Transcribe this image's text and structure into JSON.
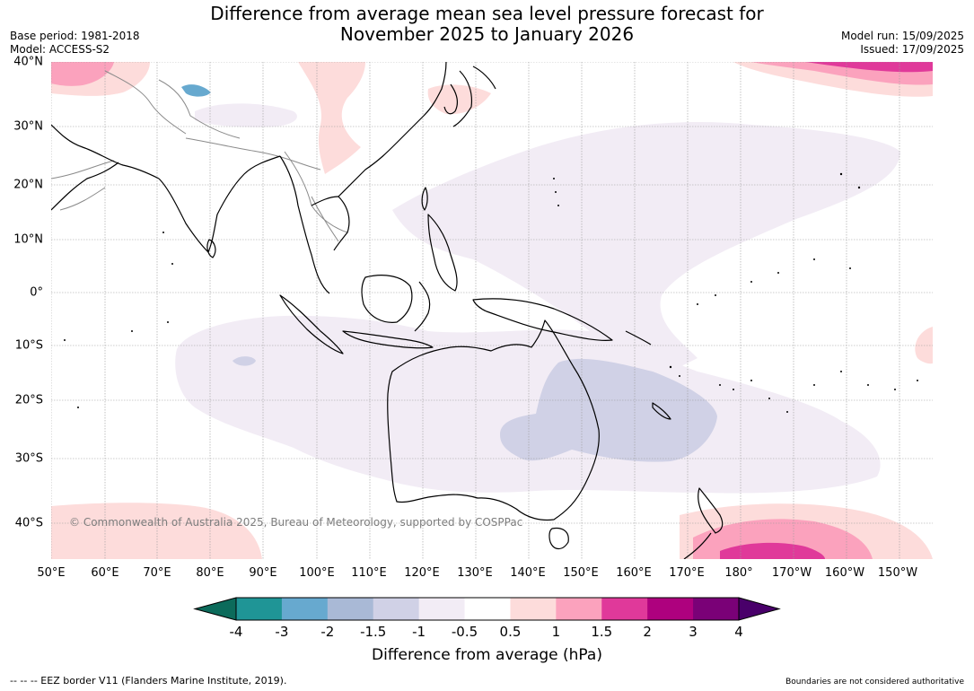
{
  "title": {
    "line1": "Difference from average mean sea level pressure forecast for",
    "line2": "November 2025 to January 2026"
  },
  "meta_left": {
    "base_period": "Base period: 1981-2018",
    "model": "Model: ACCESS-S2"
  },
  "meta_right": {
    "model_run": "Model run: 15/09/2025",
    "issued": "Issued: 17/09/2025"
  },
  "map": {
    "latitude_labels": [
      "40°N",
      "30°N",
      "20°N",
      "10°N",
      "0°",
      "10°S",
      "20°S",
      "30°S",
      "40°S"
    ],
    "longitude_labels": [
      "50°E",
      "60°E",
      "70°E",
      "80°E",
      "90°E",
      "100°E",
      "110°E",
      "120°E",
      "130°E",
      "140°E",
      "150°E",
      "160°E",
      "170°E",
      "180°",
      "170°W",
      "160°W",
      "150°W"
    ],
    "copyright": "© Commonwealth of Australia 2025, Bureau of Meteorology, supported by COSPPac",
    "colors": {
      "land_outline": "#000000",
      "country_border": "#8a8a8a",
      "gridline": "#9a9a9a"
    }
  },
  "colorbar": {
    "label": "Difference from average (hPa)",
    "ticks": [
      "-4",
      "-3",
      "-2",
      "-1.5",
      "-1",
      "-0.5",
      "0.5",
      "1",
      "1.5",
      "2",
      "3",
      "4"
    ],
    "colors": [
      "#0c6b5b",
      "#1f9596",
      "#67a9cf",
      "#a9b9d6",
      "#d0d1e6",
      "#f2ecf5",
      "#ffffff",
      "#fddcdb",
      "#fba2bd",
      "#e0399a",
      "#ae017e",
      "#7a0177",
      "#49006a"
    ]
  },
  "footer": {
    "eez_note": "--  --  -- EEZ border V11 (Flanders Marine Institute, 2019).",
    "boundaries_note": "Boundaries are not considered authoritative"
  }
}
